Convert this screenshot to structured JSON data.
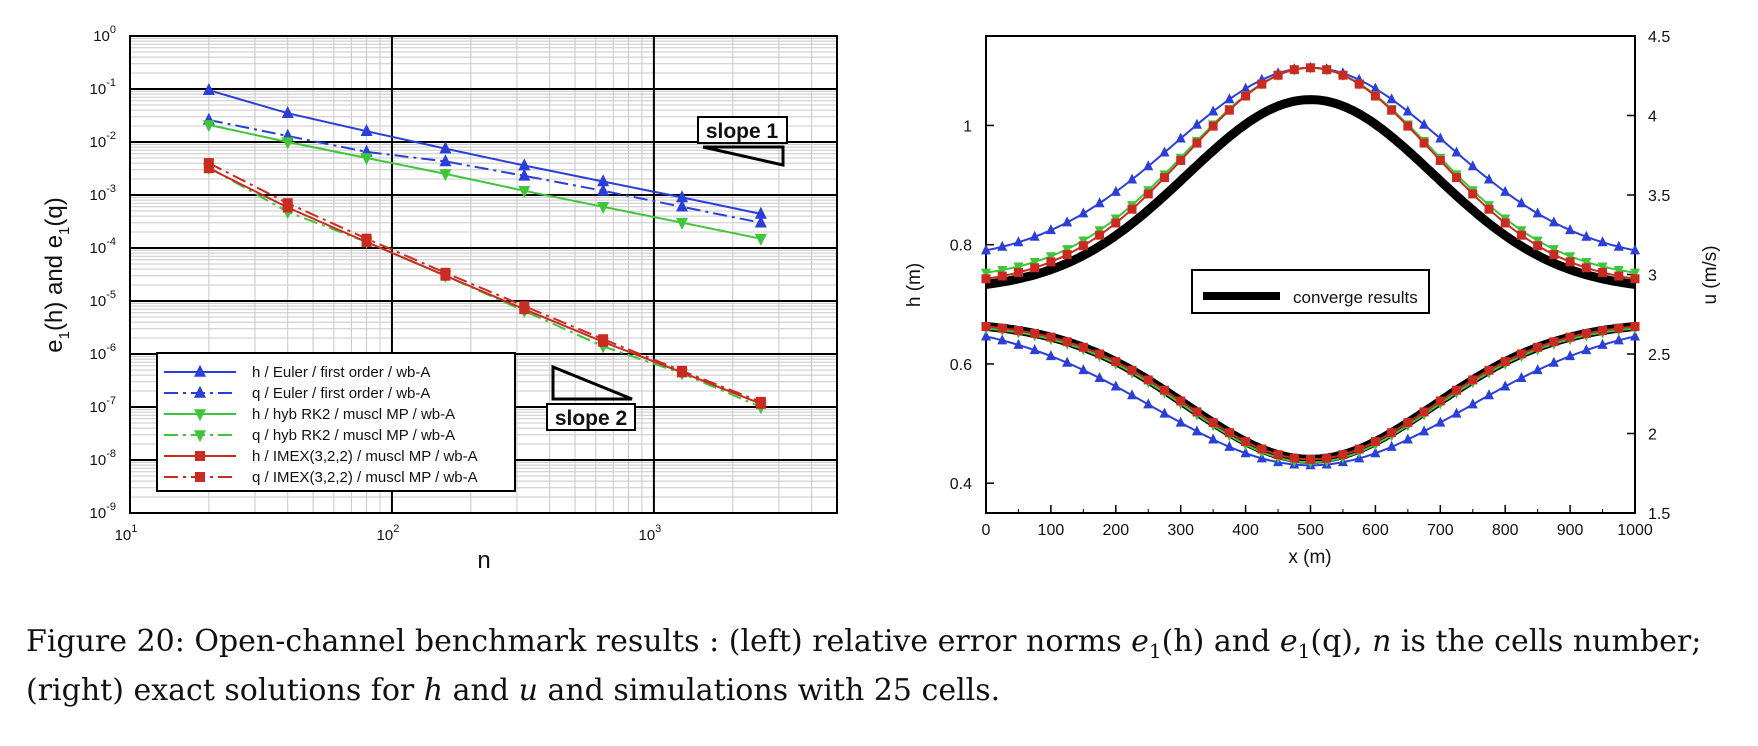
{
  "colors": {
    "blue": "#2b3fd8",
    "green": "#3fc53a",
    "red": "#c92b22",
    "black": "#000000"
  },
  "chart_data": [
    {
      "type": "line",
      "title": "",
      "xlabel": "n",
      "ylabel": "e1(h) and e1(q)",
      "xscale": "log",
      "yscale": "log",
      "xlim": [
        10,
        5000
      ],
      "ylim": [
        1e-09,
        1
      ],
      "x_tick_labels": [
        "10^1",
        "10^2",
        "10^3"
      ],
      "y_tick_labels": [
        "10^0",
        "10^-1",
        "10^-2",
        "10^-3",
        "10^-4",
        "10^-5",
        "10^-6",
        "10^-7",
        "10^-8",
        "10^-9"
      ],
      "grid": true,
      "legend_position": "bottom-left",
      "x": [
        20,
        40,
        80,
        160,
        320,
        640,
        1280,
        2560
      ],
      "series": [
        {
          "name": "h / Euler / first order / wb-A",
          "color": "blue",
          "dash": "solid",
          "marker": "triangle-up",
          "values": [
            0.095,
            0.035,
            0.016,
            0.0075,
            0.0036,
            0.0018,
            0.0009,
            0.00044
          ]
        },
        {
          "name": "q / Euler / first order / wb-A",
          "color": "blue",
          "dash": "dashdot",
          "marker": "triangle-up",
          "values": [
            0.026,
            0.013,
            0.0065,
            0.0043,
            0.0023,
            0.0012,
            0.0006,
            0.0003
          ]
        },
        {
          "name": "h / hyb RK2 / muscl MP / wb-A",
          "color": "green",
          "dash": "solid",
          "marker": "triangle-down",
          "values": [
            0.021,
            0.01,
            0.005,
            0.0025,
            0.0012,
            0.0006,
            0.0003,
            0.00015
          ]
        },
        {
          "name": "q / hyb RK2 / muscl MP / wb-A",
          "color": "green",
          "dash": "dashdot",
          "marker": "triangle-down",
          "values": [
            0.0033,
            0.00048,
            0.00013,
            3e-05,
            6.5e-06,
            1.4e-06,
            4.3e-07,
            1e-07
          ]
        },
        {
          "name": "h / IMEX(3,2,2) / muscl MP / wb-A",
          "color": "red",
          "dash": "solid",
          "marker": "square",
          "values": [
            0.0032,
            0.00058,
            0.00013,
            3e-05,
            7e-06,
            1.7e-06,
            4.5e-07,
            1.15e-07
          ]
        },
        {
          "name": "q / IMEX(3,2,2) / muscl MP / wb-A",
          "color": "red",
          "dash": "dashdot",
          "marker": "square",
          "values": [
            0.004,
            0.0007,
            0.00015,
            3.4e-05,
            8e-06,
            1.9e-06,
            4.8e-07,
            1.25e-07
          ]
        }
      ],
      "annotations": [
        "slope 1",
        "slope 2"
      ]
    },
    {
      "type": "line",
      "title": "",
      "xlabel": "x (m)",
      "ylabel": "h (m)",
      "y2label": "u (m/s)",
      "xlim": [
        0,
        1000
      ],
      "ylim": [
        0.35,
        1.15
      ],
      "y2lim": [
        1.5,
        4.5
      ],
      "x_ticks": [
        0,
        100,
        200,
        300,
        400,
        500,
        600,
        700,
        800,
        900,
        1000
      ],
      "y_ticks": [
        0.4,
        0.6,
        0.8,
        1
      ],
      "y2_ticks": [
        1.5,
        2,
        2.5,
        3,
        3.5,
        4,
        4.5
      ],
      "grid": false,
      "legend_position": "center",
      "legend": [
        "converge results"
      ],
      "series": [
        {
          "name": "converge results h",
          "axis": "left",
          "color": "black",
          "style": "thick",
          "base": 0.44,
          "amp": 0.66,
          "sigma": 190
        },
        {
          "name": "converge results u",
          "axis": "right",
          "color": "black",
          "style": "thick",
          "base": 2.9,
          "amp": 1.2,
          "sigma": 190
        },
        {
          "axis": "right",
          "color": "blue",
          "marker": "triangle-up",
          "base": 3.08,
          "amp": 1.22,
          "sigma": 210
        },
        {
          "axis": "left",
          "color": "blue",
          "marker": "triangle-up",
          "base": 0.43,
          "amp": 0.7,
          "sigma": 240
        },
        {
          "axis": "right",
          "color": "green",
          "marker": "triangle-down",
          "base": 2.97,
          "amp": 1.33,
          "sigma": 190
        },
        {
          "axis": "left",
          "color": "green",
          "marker": "triangle-down",
          "base": 0.435,
          "amp": 0.665,
          "sigma": 190
        },
        {
          "axis": "right",
          "color": "red",
          "marker": "square",
          "base": 2.93,
          "amp": 1.37,
          "sigma": 190
        },
        {
          "axis": "left",
          "color": "red",
          "marker": "square",
          "base": 0.44,
          "amp": 0.66,
          "sigma": 190
        }
      ]
    }
  ],
  "caption": {
    "line1_a": "Figure 20: Open-channel benchmark results : (left) relative error norms ",
    "e1h": "e",
    "e1h_sub": "1",
    "e1h_arg": "(h)",
    "and": " and ",
    "e1q": "e",
    "e1q_sub": "1",
    "e1q_arg": "(q)",
    "line1_b": ", ",
    "n": "n",
    "line1_c": " is the cells number;",
    "line2_a": "(right) exact solutions for ",
    "h": "h",
    "line2_b": " and ",
    "u": "u",
    "line2_c": " and simulations with 25 cells."
  }
}
